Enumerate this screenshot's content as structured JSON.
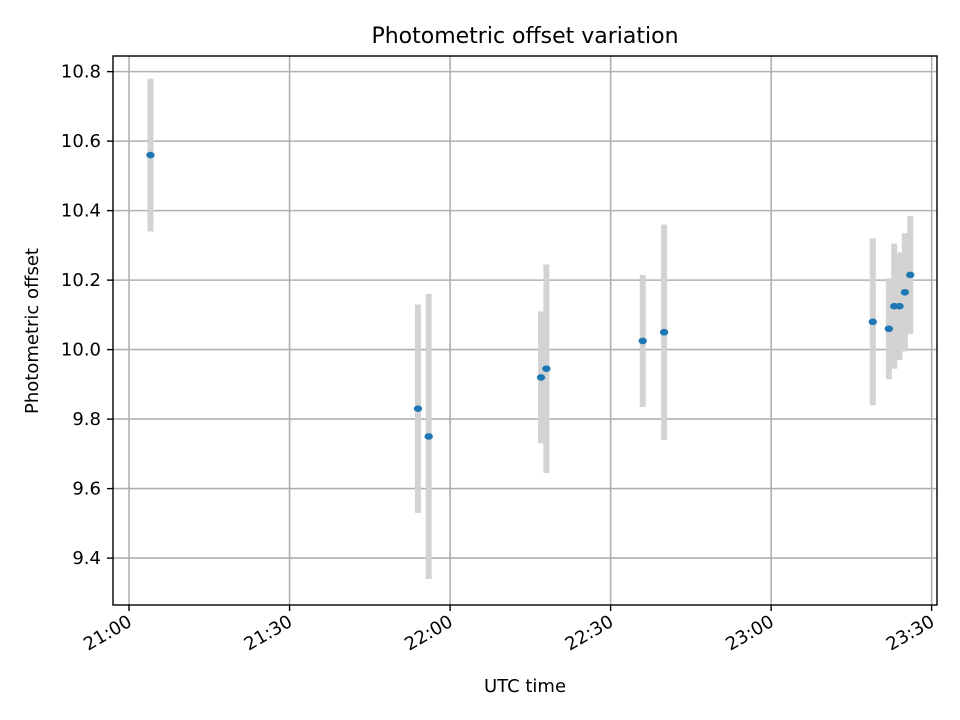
{
  "chart_data": {
    "type": "scatter",
    "title": "Photometric offset variation",
    "xlabel": "UTC time",
    "ylabel": "Photometric offset",
    "xlim": [
      "20:57",
      "23:31"
    ],
    "ylim": [
      9.265,
      10.845
    ],
    "grid": true,
    "x_ticks": [
      "21:00",
      "21:30",
      "22:00",
      "22:30",
      "23:00",
      "23:30"
    ],
    "y_ticks": [
      "9.4",
      "9.6",
      "9.8",
      "10.0",
      "10.2",
      "10.4",
      "10.6",
      "10.8"
    ],
    "colors": {
      "points": "#1f77b4",
      "error_bars": "#d3d3d3"
    },
    "points": [
      {
        "time": "21:04",
        "y": 10.56,
        "err": 0.22
      },
      {
        "time": "21:54",
        "y": 9.83,
        "err": 0.3
      },
      {
        "time": "21:56",
        "y": 9.75,
        "err": 0.41
      },
      {
        "time": "22:17",
        "y": 9.92,
        "err": 0.19
      },
      {
        "time": "22:18",
        "y": 9.945,
        "err": 0.3
      },
      {
        "time": "22:36",
        "y": 10.025,
        "err": 0.19
      },
      {
        "time": "22:40",
        "y": 10.05,
        "err": 0.31
      },
      {
        "time": "23:19",
        "y": 10.08,
        "err": 0.24
      },
      {
        "time": "23:22",
        "y": 10.06,
        "err": 0.145
      },
      {
        "time": "23:23",
        "y": 10.125,
        "err": 0.18
      },
      {
        "time": "23:24",
        "y": 10.125,
        "err": 0.155
      },
      {
        "time": "23:25",
        "y": 10.165,
        "err": 0.17
      },
      {
        "time": "23:26",
        "y": 10.215,
        "err": 0.17
      }
    ]
  }
}
